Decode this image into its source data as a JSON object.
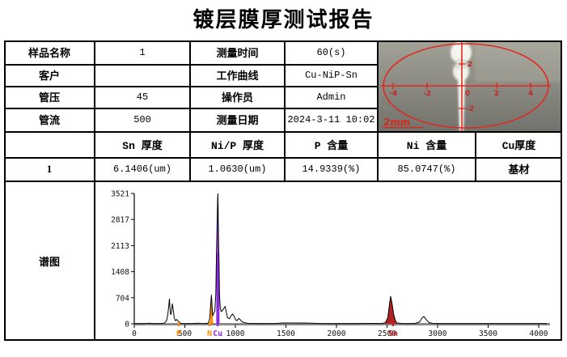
{
  "title": "镀层膜厚测试报告",
  "info_table": {
    "rows": [
      {
        "label_left": "样品名称",
        "value_left": "1",
        "label_right": "测量时间",
        "value_right": "60(s)"
      },
      {
        "label_left": "客户",
        "value_left": "",
        "label_right": "工作曲线",
        "value_right": "Cu-NiP-Sn"
      },
      {
        "label_left": "管压",
        "value_left": "45",
        "label_right": "操作员",
        "value_right": "Admin"
      },
      {
        "label_left": "管流",
        "value_left": "500",
        "label_right": "测量日期",
        "value_right": "2024-3-11 10:02"
      }
    ]
  },
  "results_table": {
    "headers": [
      "",
      "Sn 厚度",
      "Ni/P 厚度",
      "P 含量",
      "Ni 含量",
      "Cu厚度"
    ],
    "row": {
      "index": "1",
      "sn_thickness": "6.1406(um)",
      "nip_thickness": "1.0630(um)",
      "p_content": "14.9339(%)",
      "ni_content": "85.0747(%)",
      "cu_thickness": "基材"
    }
  },
  "spectrum_section": {
    "label": "谱图"
  },
  "photo_overlay": {
    "h_axis_labels": [
      "-4",
      "-2",
      "0",
      "2",
      "4"
    ],
    "v_axis_label_top": "2",
    "v_axis_label_bottom": "-2",
    "scale_label": "2mm",
    "overlay_color": "#e02a20"
  },
  "chart_data": {
    "type": "area",
    "title": "",
    "xlabel": "",
    "ylabel": "",
    "xlim": [
      0,
      4120
    ],
    "ylim": [
      0,
      3521
    ],
    "grid": false,
    "x_ticks": [
      0,
      500,
      1000,
      1500,
      2000,
      2500,
      3000,
      3500,
      4000
    ],
    "y_ticks": [
      0,
      704,
      1408,
      2113,
      2817,
      3521
    ],
    "colors": {
      "axis": "#8a8a8a",
      "trace": "#000000"
    },
    "element_markers": [
      {
        "label": "P",
        "x": 440,
        "color": "#ff8c00"
      },
      {
        "label": "N",
        "x": 744,
        "color": "#ff8c00"
      },
      {
        "label": "Cu",
        "x": 825,
        "color": "#8a2be2"
      },
      {
        "label": "Sn",
        "x": 2560,
        "color": "#cc2222"
      }
    ],
    "filled_peaks": [
      {
        "element": "Ni",
        "color": "#ff8c00",
        "points": [
          [
            750,
            0
          ],
          [
            757,
            560
          ],
          [
            763,
            780
          ],
          [
            770,
            430
          ],
          [
            776,
            210
          ],
          [
            781,
            0
          ]
        ]
      },
      {
        "element": "Cu",
        "color": "#8a2be2",
        "points": [
          [
            811,
            0
          ],
          [
            812,
            1800
          ],
          [
            820,
            1950
          ],
          [
            824,
            3350
          ],
          [
            827,
            3521
          ],
          [
            829,
            3200
          ],
          [
            832,
            2050
          ],
          [
            841,
            1900
          ],
          [
            843,
            0
          ]
        ]
      },
      {
        "element": "Sn",
        "color": "#b22222",
        "points": [
          [
            2472,
            0
          ],
          [
            2508,
            170
          ],
          [
            2524,
            520
          ],
          [
            2535,
            745
          ],
          [
            2548,
            570
          ],
          [
            2566,
            245
          ],
          [
            2583,
            80
          ],
          [
            2596,
            0
          ]
        ]
      }
    ],
    "trace": [
      [
        0,
        5
      ],
      [
        90,
        5
      ],
      [
        125,
        12
      ],
      [
        150,
        18
      ],
      [
        175,
        8
      ],
      [
        215,
        5
      ],
      [
        260,
        7
      ],
      [
        290,
        14
      ],
      [
        305,
        35
      ],
      [
        320,
        90
      ],
      [
        332,
        260
      ],
      [
        342,
        520
      ],
      [
        348,
        680
      ],
      [
        353,
        430
      ],
      [
        360,
        240
      ],
      [
        368,
        310
      ],
      [
        376,
        545
      ],
      [
        384,
        410
      ],
      [
        394,
        175
      ],
      [
        406,
        85
      ],
      [
        420,
        115
      ],
      [
        434,
        75
      ],
      [
        448,
        28
      ],
      [
        468,
        12
      ],
      [
        500,
        7
      ],
      [
        545,
        6
      ],
      [
        585,
        9
      ],
      [
        625,
        16
      ],
      [
        660,
        10
      ],
      [
        700,
        8
      ],
      [
        728,
        14
      ],
      [
        742,
        90
      ],
      [
        750,
        280
      ],
      [
        757,
        560
      ],
      [
        763,
        780
      ],
      [
        770,
        430
      ],
      [
        776,
        210
      ],
      [
        786,
        300
      ],
      [
        797,
        340
      ],
      [
        806,
        800
      ],
      [
        813,
        1850
      ],
      [
        820,
        2800
      ],
      [
        825,
        3380
      ],
      [
        827,
        3521
      ],
      [
        830,
        2950
      ],
      [
        834,
        2050
      ],
      [
        839,
        1500
      ],
      [
        843,
        750
      ],
      [
        850,
        430
      ],
      [
        860,
        330
      ],
      [
        873,
        360
      ],
      [
        886,
        420
      ],
      [
        899,
        465
      ],
      [
        911,
        300
      ],
      [
        923,
        165
      ],
      [
        941,
        140
      ],
      [
        959,
        225
      ],
      [
        972,
        265
      ],
      [
        986,
        215
      ],
      [
        1002,
        105
      ],
      [
        1016,
        85
      ],
      [
        1032,
        145
      ],
      [
        1047,
        115
      ],
      [
        1066,
        55
      ],
      [
        1092,
        28
      ],
      [
        1125,
        14
      ],
      [
        1190,
        9
      ],
      [
        1290,
        7
      ],
      [
        1390,
        9
      ],
      [
        1435,
        16
      ],
      [
        1475,
        22
      ],
      [
        1610,
        21
      ],
      [
        1725,
        20
      ],
      [
        1785,
        14
      ],
      [
        1830,
        9
      ],
      [
        1920,
        6
      ],
      [
        2020,
        6
      ],
      [
        2120,
        7
      ],
      [
        2220,
        9
      ],
      [
        2310,
        12
      ],
      [
        2370,
        10
      ],
      [
        2440,
        9
      ],
      [
        2478,
        22
      ],
      [
        2490,
        65
      ],
      [
        2508,
        170
      ],
      [
        2524,
        520
      ],
      [
        2535,
        745
      ],
      [
        2548,
        570
      ],
      [
        2566,
        245
      ],
      [
        2583,
        80
      ],
      [
        2600,
        22
      ],
      [
        2645,
        9
      ],
      [
        2705,
        7
      ],
      [
        2775,
        9
      ],
      [
        2820,
        45
      ],
      [
        2848,
        165
      ],
      [
        2865,
        195
      ],
      [
        2890,
        105
      ],
      [
        2915,
        32
      ],
      [
        2950,
        12
      ],
      [
        3030,
        7
      ],
      [
        3160,
        5
      ],
      [
        3320,
        4
      ],
      [
        3520,
        4
      ],
      [
        3720,
        4
      ],
      [
        3920,
        4
      ],
      [
        4080,
        4
      ]
    ]
  }
}
